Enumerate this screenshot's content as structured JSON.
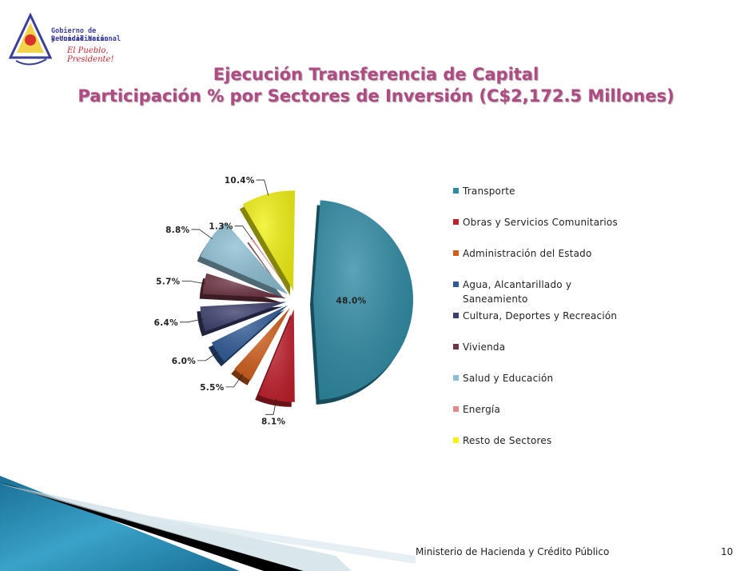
{
  "header": {
    "logo_line1": "Gobierno de Reconciliación",
    "logo_line2": "y Unidad Nacional",
    "logo_slogan": "El Pueblo, Presidente!",
    "logo_seal_text": "NICARAGUA TRIUNFA",
    "title_line1": "Ejecución Transferencia de Capital",
    "title_line2": "Participación % por Sectores de Inversión (C$2,172.5 Millones)"
  },
  "chart_data": {
    "type": "pie",
    "title": "Participación % por Sectores de Inversión (C$2,172.5 Millones)",
    "legend_position": "right",
    "exploded": true,
    "slices": [
      {
        "name": "Transporte",
        "value": 48.0,
        "label": "48.0%",
        "color": "#2e8aa3"
      },
      {
        "name": "Obras y Servicios Comunitarios",
        "value": 8.1,
        "label": "8.1%",
        "color": "#c0202c"
      },
      {
        "name": "Administración del Estado",
        "value": 5.5,
        "label": "5.5%",
        "color": "#d05e1c"
      },
      {
        "name": "Agua, Alcantarillado y Saneamiento",
        "value": 6.0,
        "label": "6.0%",
        "color": "#2f5a96"
      },
      {
        "name": "Cultura, Deportes y Recreación",
        "value": 6.4,
        "label": "6.4%",
        "color": "#3c3f6d"
      },
      {
        "name": "Vivienda",
        "value": 5.7,
        "label": "5.7%",
        "color": "#6e3444"
      },
      {
        "name": "Salud y Educación",
        "value": 8.8,
        "label": "8.8%",
        "color": "#8dbfd3"
      },
      {
        "name": "Energía",
        "value": 1.3,
        "label": "1.3%",
        "color": "#e08a8e"
      },
      {
        "name": "Resto de Sectores",
        "value": 10.4,
        "label": "10.4%",
        "color": "#f2f214"
      }
    ]
  },
  "legend": {
    "items": [
      {
        "label": "Transporte",
        "color": "#2e8aa3"
      },
      {
        "label": "Obras y Servicios Comunitarios",
        "color": "#c0202c"
      },
      {
        "label": "Administración del Estado",
        "color": "#d05e1c"
      },
      {
        "label": "Agua, Alcantarillado y",
        "label2": "Saneamiento",
        "color": "#2f5a96"
      },
      {
        "label": "Cultura, Deportes y Recreación",
        "color": "#3c3f6d"
      },
      {
        "label": "Vivienda",
        "color": "#6e3444"
      },
      {
        "label": "Salud y Educación",
        "color": "#8dbfd3"
      },
      {
        "label": "Energía",
        "color": "#e08a8e"
      },
      {
        "label": "Resto de Sectores",
        "color": "#f2f214"
      }
    ]
  },
  "footer": {
    "ministry": "Ministerio de Hacienda y Crédito Público",
    "page_number": "10"
  }
}
